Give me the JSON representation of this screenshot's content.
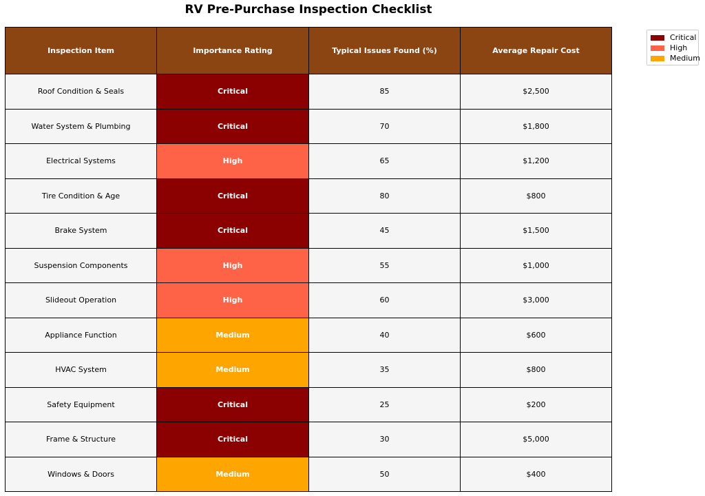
{
  "chart_data": {
    "type": "table",
    "title": "RV Pre-Purchase Inspection Checklist",
    "columns": [
      "Inspection Item",
      "Importance Rating",
      "Typical Issues Found (%)",
      "Average Repair Cost"
    ],
    "rows": [
      {
        "item": "Roof Condition & Seals",
        "rating": "Critical",
        "issues": "85",
        "cost": "$2,500"
      },
      {
        "item": "Water System & Plumbing",
        "rating": "Critical",
        "issues": "70",
        "cost": "$1,800"
      },
      {
        "item": "Electrical Systems",
        "rating": "High",
        "issues": "65",
        "cost": "$1,200"
      },
      {
        "item": "Tire Condition & Age",
        "rating": "Critical",
        "issues": "80",
        "cost": "$800"
      },
      {
        "item": "Brake System",
        "rating": "Critical",
        "issues": "45",
        "cost": "$1,500"
      },
      {
        "item": "Suspension Components",
        "rating": "High",
        "issues": "55",
        "cost": "$1,000"
      },
      {
        "item": "Slideout Operation",
        "rating": "High",
        "issues": "60",
        "cost": "$3,000"
      },
      {
        "item": "Appliance Function",
        "rating": "Medium",
        "issues": "40",
        "cost": "$600"
      },
      {
        "item": "HVAC System",
        "rating": "Medium",
        "issues": "35",
        "cost": "$800"
      },
      {
        "item": "Safety Equipment",
        "rating": "Critical",
        "issues": "25",
        "cost": "$200"
      },
      {
        "item": "Frame & Structure",
        "rating": "Critical",
        "issues": "30",
        "cost": "$5,000"
      },
      {
        "item": "Windows & Doors",
        "rating": "Medium",
        "issues": "50",
        "cost": "$400"
      }
    ],
    "legend": {
      "placement": "top-right",
      "entries": [
        {
          "label": "Critical",
          "color": "#8b0000"
        },
        {
          "label": "High",
          "color": "#ff6347"
        },
        {
          "label": "Medium",
          "color": "#ffa500"
        }
      ]
    },
    "colors": {
      "header_bg": "#8b4513",
      "cell_bg": "#f5f5f5",
      "Critical": "#8b0000",
      "High": "#ff6347",
      "Medium": "#ffa500"
    }
  }
}
